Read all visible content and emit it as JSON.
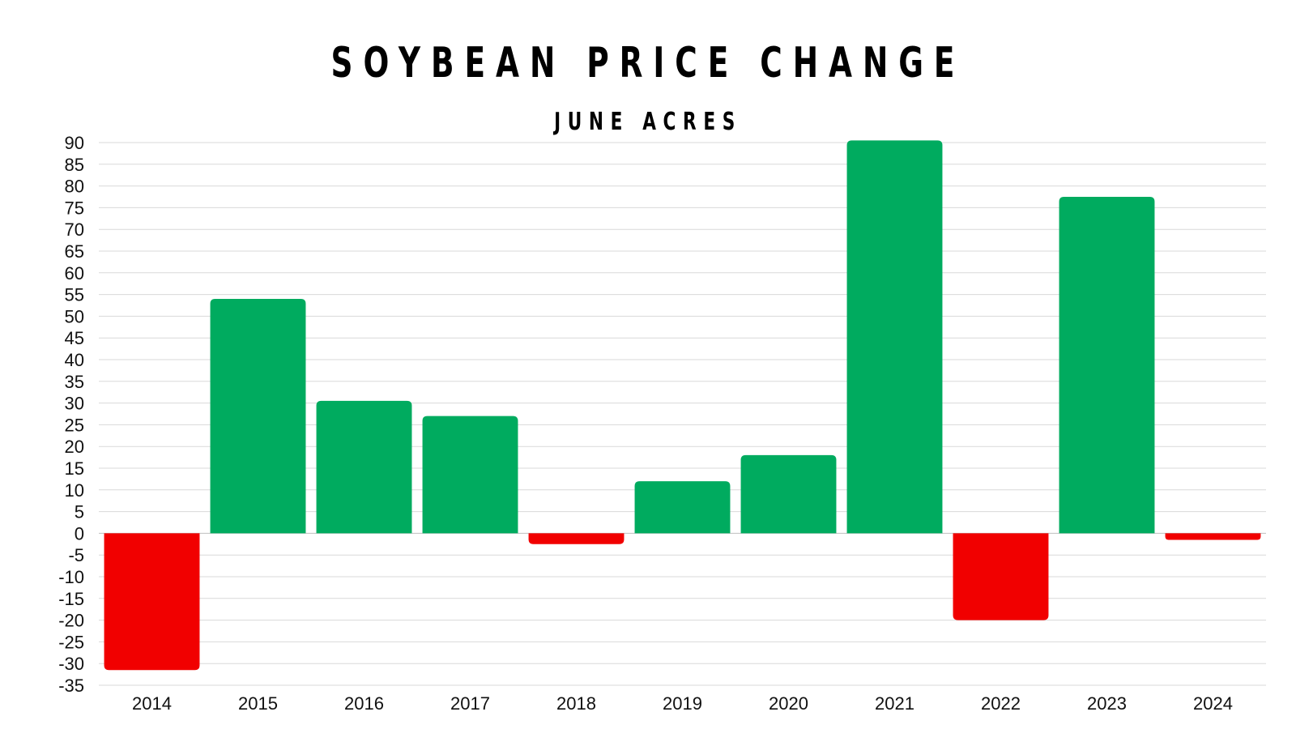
{
  "chart_data": {
    "type": "bar",
    "title": "SOYBEAN PRICE CHANGE",
    "subtitle": "JUNE ACRES",
    "xlabel": "",
    "ylabel": "",
    "categories": [
      "2014",
      "2015",
      "2016",
      "2017",
      "2018",
      "2019",
      "2020",
      "2021",
      "2022",
      "2023",
      "2024"
    ],
    "values": [
      -31.5,
      54,
      30.5,
      27,
      -2.5,
      12,
      18,
      90.5,
      -20,
      77.5,
      -1.5
    ],
    "ylim": [
      -35,
      90
    ],
    "ytick_step": 5,
    "grid": true,
    "colors": {
      "positive": "#00ab5f",
      "negative": "#f10000",
      "grid": "#d9d9d9",
      "zero_line": "#bfbfbf"
    }
  }
}
